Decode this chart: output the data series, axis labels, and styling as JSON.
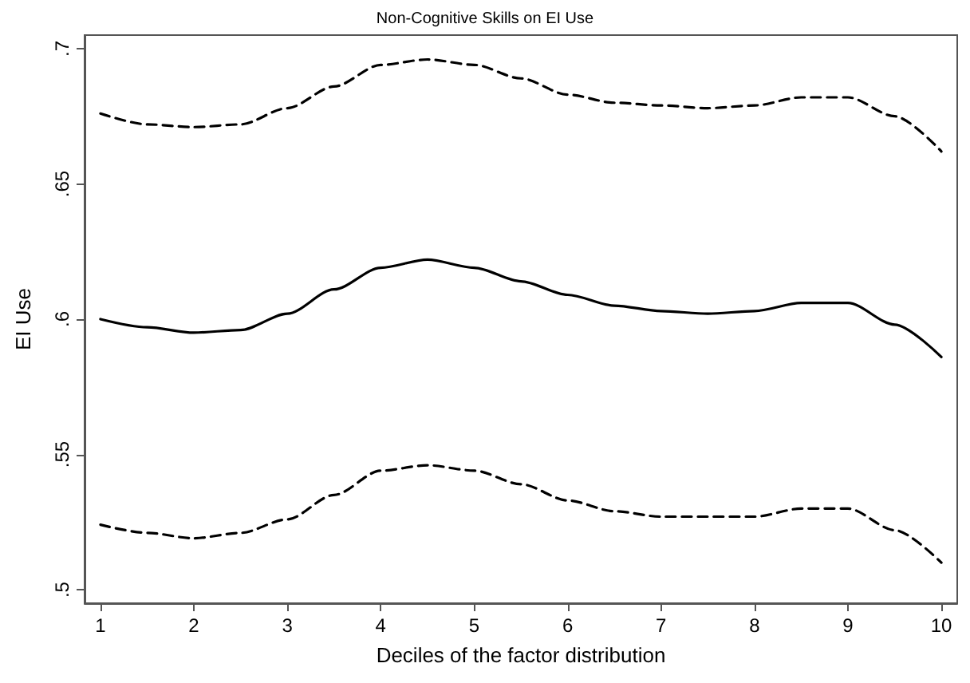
{
  "chart_data": {
    "type": "line",
    "title": "Non-Cognitive Skills on EI Use",
    "xlabel": "Deciles of the factor distribution",
    "ylabel": "EI Use",
    "x": [
      1,
      1.5,
      2,
      2.5,
      3,
      3.5,
      4,
      4.5,
      5,
      5.5,
      6,
      6.5,
      7,
      7.5,
      8,
      8.5,
      9,
      9.5,
      10
    ],
    "series": [
      {
        "color": "#000000",
        "line_style": "solid",
        "values": [
          0.6,
          0.597,
          0.595,
          0.596,
          0.602,
          0.611,
          0.619,
          0.622,
          0.619,
          0.614,
          0.609,
          0.605,
          0.603,
          0.602,
          0.603,
          0.606,
          0.606,
          0.598,
          0.586
        ]
      },
      {
        "color": "#000000",
        "line_style": "dashed",
        "values": [
          0.676,
          0.672,
          0.671,
          0.672,
          0.678,
          0.686,
          0.694,
          0.696,
          0.694,
          0.689,
          0.683,
          0.68,
          0.679,
          0.678,
          0.679,
          0.682,
          0.682,
          0.675,
          0.662
        ]
      },
      {
        "color": "#000000",
        "line_style": "dashed",
        "values": [
          0.524,
          0.521,
          0.519,
          0.521,
          0.526,
          0.535,
          0.544,
          0.546,
          0.544,
          0.539,
          0.533,
          0.529,
          0.527,
          0.527,
          0.527,
          0.53,
          0.53,
          0.522,
          0.51
        ]
      }
    ],
    "xlim": [
      0.83,
      10.17
    ],
    "ylim": [
      0.495,
      0.705
    ],
    "xticks": [
      1,
      2,
      3,
      4,
      5,
      6,
      7,
      8,
      9,
      10
    ],
    "yticks": [
      {
        "value": 0.5,
        "label": ".5"
      },
      {
        "value": 0.55,
        "label": ".55"
      },
      {
        "value": 0.6,
        "label": ".6"
      },
      {
        "value": 0.65,
        "label": ".65"
      },
      {
        "value": 0.7,
        "label": ".7"
      }
    ],
    "grid": false,
    "marker": "none"
  }
}
